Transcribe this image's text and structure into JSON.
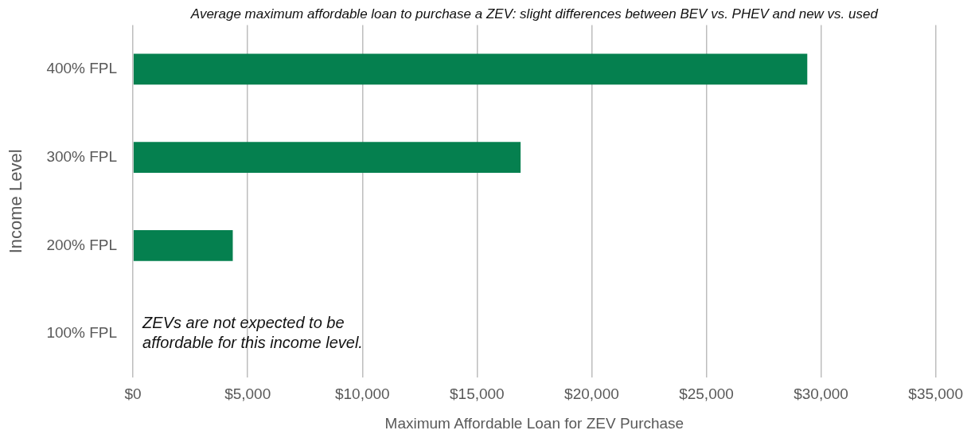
{
  "chart_data": {
    "type": "bar",
    "orientation": "horizontal",
    "title": "Average maximum affordable loan to purchase a ZEV: slight differences between BEV vs. PHEV and new vs. used",
    "xlabel": "Maximum Affordable Loan for ZEV Purchase",
    "ylabel": "Income Level",
    "categories": [
      "400% FPL",
      "300% FPL",
      "200% FPL",
      "100% FPL"
    ],
    "values": [
      29400,
      16900,
      4350,
      null
    ],
    "color": "#05804f",
    "xlim": [
      0,
      35000
    ],
    "xticks": [
      {
        "value": 0,
        "label": "$0"
      },
      {
        "value": 5000,
        "label": "$5,000"
      },
      {
        "value": 10000,
        "label": "$10,000"
      },
      {
        "value": 15000,
        "label": "$15,000"
      },
      {
        "value": 20000,
        "label": "$20,000"
      },
      {
        "value": 25000,
        "label": "$25,000"
      },
      {
        "value": 30000,
        "label": "$30,000"
      },
      {
        "value": 35000,
        "label": "$35,000"
      }
    ],
    "grid": "x",
    "legend": false,
    "annotations": [
      "ZEVs are not expected to be\naffordable for this income level."
    ]
  }
}
